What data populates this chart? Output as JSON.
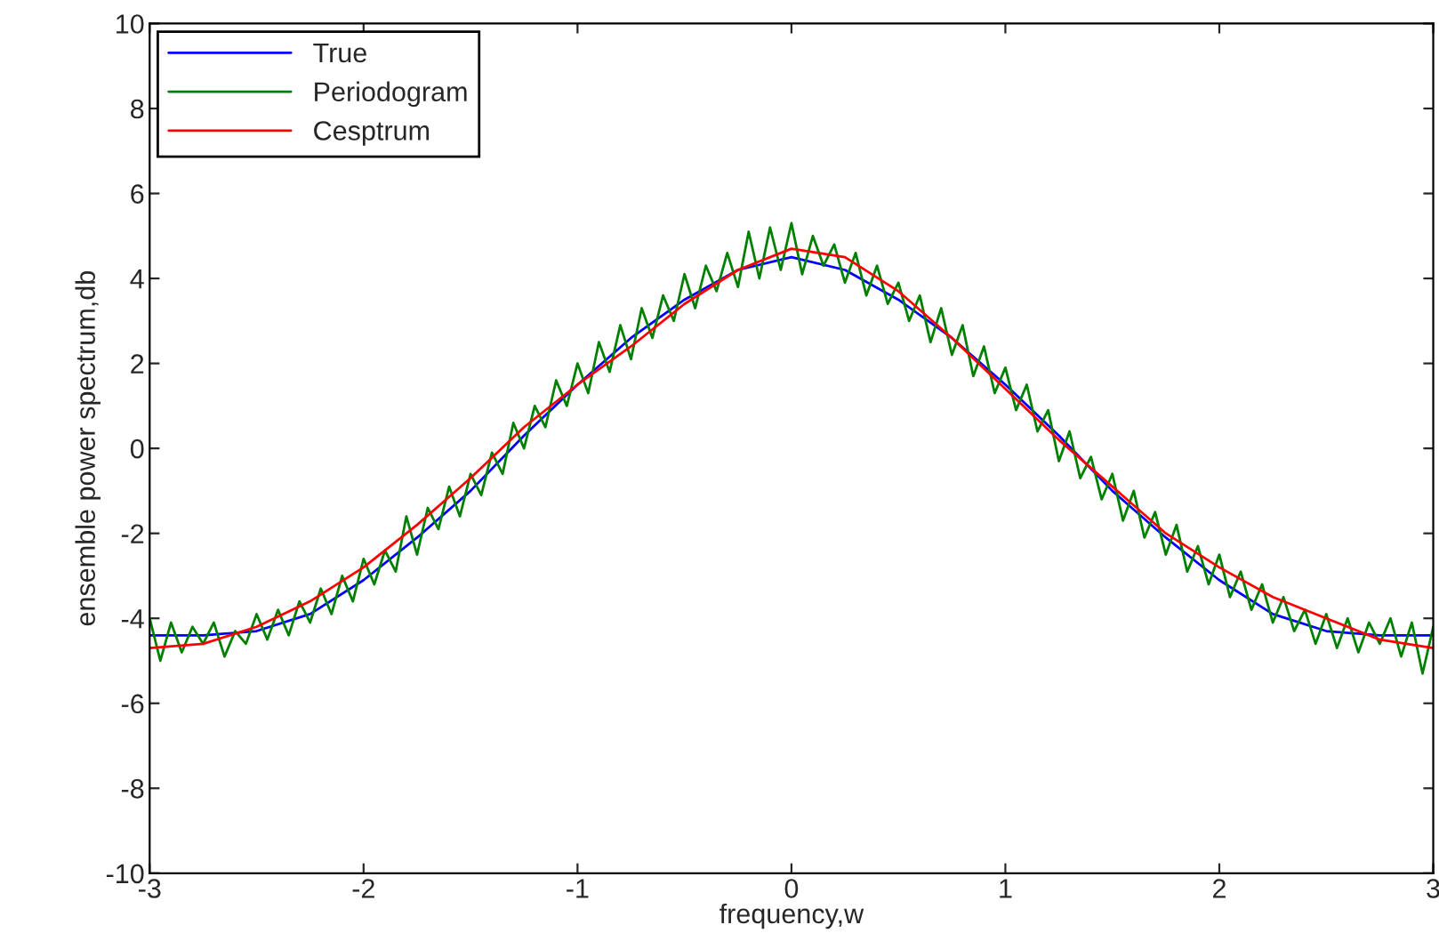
{
  "chart_data": {
    "type": "line",
    "xlabel": "frequency,w",
    "ylabel": "ensemble power spectrum,db",
    "xlim": [
      -3,
      3
    ],
    "xticks": [
      -3,
      -2,
      -1,
      0,
      1,
      2,
      3
    ],
    "ylim": [
      -10,
      10
    ],
    "yticks": [
      -10,
      -8,
      -6,
      -4,
      -2,
      0,
      2,
      4,
      6,
      8,
      10
    ],
    "grid": false,
    "legend": "top left",
    "marker": "none",
    "line_style": "solid",
    "series": [
      {
        "name": "True",
        "color": "#0000ff",
        "x": [
          -3,
          -2.75,
          -2.5,
          -2.25,
          -2,
          -1.75,
          -1.5,
          -1.25,
          -1,
          -0.75,
          -0.5,
          -0.25,
          0,
          0.25,
          0.5,
          0.75,
          1,
          1.25,
          1.5,
          1.75,
          2,
          2.25,
          2.5,
          2.75,
          3
        ],
        "values": [
          -4.4,
          -4.4,
          -4.3,
          -3.9,
          -3.1,
          -2.1,
          -1.0,
          0.3,
          1.5,
          2.6,
          3.5,
          4.2,
          4.5,
          4.2,
          3.5,
          2.6,
          1.5,
          0.3,
          -1.0,
          -2.1,
          -3.1,
          -3.9,
          -4.3,
          -4.4,
          -4.4
        ]
      },
      {
        "name": "Periodogram",
        "color": "#008000",
        "x": [
          -3.0,
          -2.95,
          -2.9,
          -2.85,
          -2.8,
          -2.75,
          -2.7,
          -2.65,
          -2.6,
          -2.55,
          -2.5,
          -2.45,
          -2.4,
          -2.35,
          -2.3,
          -2.25,
          -2.2,
          -2.15,
          -2.1,
          -2.05,
          -2.0,
          -1.95,
          -1.9,
          -1.85,
          -1.8,
          -1.75,
          -1.7,
          -1.65,
          -1.6,
          -1.55,
          -1.5,
          -1.45,
          -1.4,
          -1.35,
          -1.3,
          -1.25,
          -1.2,
          -1.15,
          -1.1,
          -1.05,
          -1.0,
          -0.95,
          -0.9,
          -0.85,
          -0.8,
          -0.75,
          -0.7,
          -0.65,
          -0.6,
          -0.55,
          -0.5,
          -0.45,
          -0.4,
          -0.35,
          -0.3,
          -0.25,
          -0.2,
          -0.15,
          -0.1,
          -0.05,
          0.0,
          0.05,
          0.1,
          0.15,
          0.2,
          0.25,
          0.3,
          0.35,
          0.4,
          0.45,
          0.5,
          0.55,
          0.6,
          0.65,
          0.7,
          0.75,
          0.8,
          0.85,
          0.9,
          0.95,
          1.0,
          1.05,
          1.1,
          1.15,
          1.2,
          1.25,
          1.3,
          1.35,
          1.4,
          1.45,
          1.5,
          1.55,
          1.6,
          1.65,
          1.7,
          1.75,
          1.8,
          1.85,
          1.9,
          1.95,
          2.0,
          2.05,
          2.1,
          2.15,
          2.2,
          2.25,
          2.3,
          2.35,
          2.4,
          2.45,
          2.5,
          2.55,
          2.6,
          2.65,
          2.7,
          2.75,
          2.8,
          2.85,
          2.9,
          2.95,
          3.0
        ],
        "values": [
          -4.0,
          -5.0,
          -4.1,
          -4.8,
          -4.2,
          -4.6,
          -4.1,
          -4.9,
          -4.3,
          -4.6,
          -3.9,
          -4.5,
          -3.8,
          -4.4,
          -3.6,
          -4.1,
          -3.3,
          -3.9,
          -3.0,
          -3.6,
          -2.6,
          -3.2,
          -2.4,
          -2.9,
          -1.6,
          -2.5,
          -1.4,
          -1.9,
          -0.9,
          -1.6,
          -0.6,
          -1.1,
          -0.1,
          -0.6,
          0.6,
          0.0,
          1.0,
          0.5,
          1.6,
          1.0,
          2.0,
          1.3,
          2.5,
          1.8,
          2.9,
          2.1,
          3.3,
          2.6,
          3.6,
          3.0,
          4.1,
          3.3,
          4.3,
          3.7,
          4.6,
          3.8,
          5.1,
          4.0,
          5.2,
          4.2,
          5.3,
          4.1,
          5.0,
          4.3,
          4.8,
          3.9,
          4.6,
          3.6,
          4.3,
          3.4,
          3.9,
          3.0,
          3.6,
          2.5,
          3.3,
          2.2,
          2.9,
          1.7,
          2.4,
          1.3,
          1.9,
          0.9,
          1.5,
          0.4,
          0.9,
          -0.3,
          0.4,
          -0.7,
          -0.2,
          -1.2,
          -0.6,
          -1.7,
          -1.0,
          -2.1,
          -1.5,
          -2.5,
          -1.8,
          -2.9,
          -2.3,
          -3.2,
          -2.5,
          -3.5,
          -2.9,
          -3.8,
          -3.2,
          -4.1,
          -3.5,
          -4.3,
          -3.8,
          -4.6,
          -3.9,
          -4.7,
          -4.0,
          -4.8,
          -4.1,
          -4.6,
          -4.0,
          -4.9,
          -4.1,
          -5.3,
          -4.2
        ]
      },
      {
        "name": "Cesptrum",
        "color": "#ff0000",
        "x": [
          -3,
          -2.75,
          -2.5,
          -2.25,
          -2,
          -1.75,
          -1.5,
          -1.25,
          -1,
          -0.75,
          -0.5,
          -0.25,
          0,
          0.25,
          0.5,
          0.75,
          1,
          1.25,
          1.5,
          1.75,
          2,
          2.25,
          2.5,
          2.75,
          3
        ],
        "values": [
          -4.7,
          -4.6,
          -4.2,
          -3.6,
          -2.8,
          -1.8,
          -0.7,
          0.5,
          1.5,
          2.4,
          3.4,
          4.2,
          4.7,
          4.5,
          3.7,
          2.6,
          1.4,
          0.2,
          -0.9,
          -2.0,
          -2.8,
          -3.5,
          -4.0,
          -4.5,
          -4.7
        ]
      }
    ]
  }
}
